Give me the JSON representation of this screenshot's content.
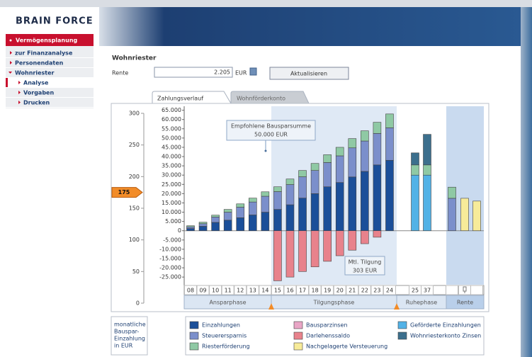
{
  "header": {
    "logo": "BRAIN FORCE"
  },
  "nav": {
    "title": "Vermögensplanung",
    "items": [
      "zur Finanzanalyse",
      "Personendaten",
      "Wohnriester",
      "Analyse",
      "Vorgaben",
      "Drucken"
    ]
  },
  "form": {
    "title": "Wohnriester",
    "label": "Rente",
    "value": "2.205",
    "unit": "EUR",
    "button": "Aktualisieren"
  },
  "tabs": [
    "Zahlungsverlauf",
    "Wohnförderkonto"
  ],
  "chart_data": [
    {
      "type": "slider",
      "ylim": [
        0,
        300
      ],
      "yticks": [
        300,
        250,
        200,
        150,
        100,
        50,
        0
      ],
      "value": 175,
      "label": [
        "monatliche",
        "Bauspar-",
        "Einzahlung",
        "in EUR"
      ]
    },
    {
      "type": "bar",
      "stacked": true,
      "categories": [
        "08",
        "09",
        "10",
        "11",
        "12",
        "13",
        "14",
        "15",
        "16",
        "17",
        "18",
        "19",
        "20",
        "21",
        "22",
        "23",
        "24",
        "25",
        "37",
        null,
        null,
        null
      ],
      "series": [
        {
          "name": "Einzahlungen",
          "color": "#1b4f99",
          "values": [
            1200,
            2400,
            4500,
            5700,
            7000,
            8500,
            10000,
            11500,
            14000,
            17600,
            20000,
            23700,
            26000,
            29000,
            32000,
            35500,
            38000,
            null,
            null,
            null,
            null,
            null
          ]
        },
        {
          "name": "Bausparzinsen",
          "color": "#e9a6c6",
          "values": [
            null,
            null,
            null,
            null,
            null,
            null,
            null,
            null,
            null,
            null,
            null,
            null,
            null,
            null,
            null,
            null,
            null,
            null,
            null,
            null,
            null,
            null
          ]
        },
        {
          "name": "Geförderte Einzahlungen",
          "color": "#52b2e6",
          "values": [
            null,
            null,
            null,
            null,
            null,
            null,
            null,
            null,
            null,
            null,
            null,
            null,
            null,
            null,
            null,
            null,
            null,
            30000,
            30000,
            null,
            null,
            null
          ]
        },
        {
          "name": "Steuerersparnis",
          "color": "#7b8fcb",
          "values": [
            900,
            1400,
            2900,
            4300,
            5700,
            7000,
            8600,
            9600,
            10900,
            11500,
            12500,
            13100,
            14400,
            15700,
            16400,
            17000,
            17500,
            null,
            null,
            17500,
            null,
            null
          ]
        },
        {
          "name": "Darlehenssaldo",
          "color": "#e8828c",
          "values": [
            null,
            null,
            null,
            null,
            null,
            null,
            null,
            -27000,
            -25000,
            -22000,
            -19500,
            -16500,
            -13500,
            -10500,
            -7000,
            -3500,
            null,
            null,
            null,
            null,
            null,
            null
          ]
        },
        {
          "name": "Wohnriesterkonto Zinsen",
          "color": "#3c6f8d",
          "values": [
            null,
            null,
            null,
            null,
            null,
            null,
            null,
            null,
            null,
            null,
            null,
            null,
            null,
            null,
            null,
            null,
            null,
            6500,
            16500,
            null,
            null,
            null
          ]
        },
        {
          "name": "Riesterförderung",
          "color": "#8fc9a4",
          "values": [
            600,
            800,
            1000,
            1500,
            1800,
            2100,
            2400,
            2600,
            3000,
            3400,
            3800,
            4200,
            4600,
            5000,
            5500,
            6000,
            7500,
            5500,
            5500,
            6000,
            null,
            null
          ]
        },
        {
          "name": "Nachgelagerte Versteuerung",
          "color": "#f7eb99",
          "values": [
            null,
            null,
            null,
            null,
            null,
            null,
            null,
            null,
            null,
            null,
            null,
            null,
            null,
            null,
            null,
            null,
            null,
            null,
            null,
            null,
            17500,
            16000
          ]
        }
      ],
      "ylim": [
        -28000,
        66000
      ],
      "yticks": [
        {
          "value": 65000,
          "label": "65.000"
        },
        {
          "value": 60000,
          "label": "60.000"
        },
        {
          "value": 55000,
          "label": "55.000"
        },
        {
          "value": 50000,
          "label": "50.000"
        },
        {
          "value": 45000,
          "label": "45.000"
        },
        {
          "value": 40000,
          "label": "40.000"
        },
        {
          "value": 35000,
          "label": "35.000"
        },
        {
          "value": 30000,
          "label": "30.000"
        },
        {
          "value": 25000,
          "label": "25.000"
        },
        {
          "value": 20000,
          "label": "20.000"
        },
        {
          "value": 15000,
          "label": "15.000"
        },
        {
          "value": 10000,
          "label": "10.000"
        },
        {
          "value": 5000,
          "label": "5.000"
        },
        0,
        {
          "value": -5000,
          "label": "-5.000"
        },
        {
          "value": -10000,
          "label": "-10.000"
        },
        {
          "value": -15000,
          "label": "-15.000"
        },
        {
          "value": -20000,
          "label": "-20.000"
        },
        {
          "value": -25000,
          "label": "-25.000"
        }
      ],
      "annotations": [
        [
          "Empfohlene Bausparsumme",
          "50.000 EUR"
        ],
        [
          "Mtl. Tilgung",
          "303 EUR"
        ]
      ],
      "phases": [
        "Ansparphase",
        "Tilgungsphase",
        "Ruhephase",
        "Rente"
      ]
    }
  ]
}
